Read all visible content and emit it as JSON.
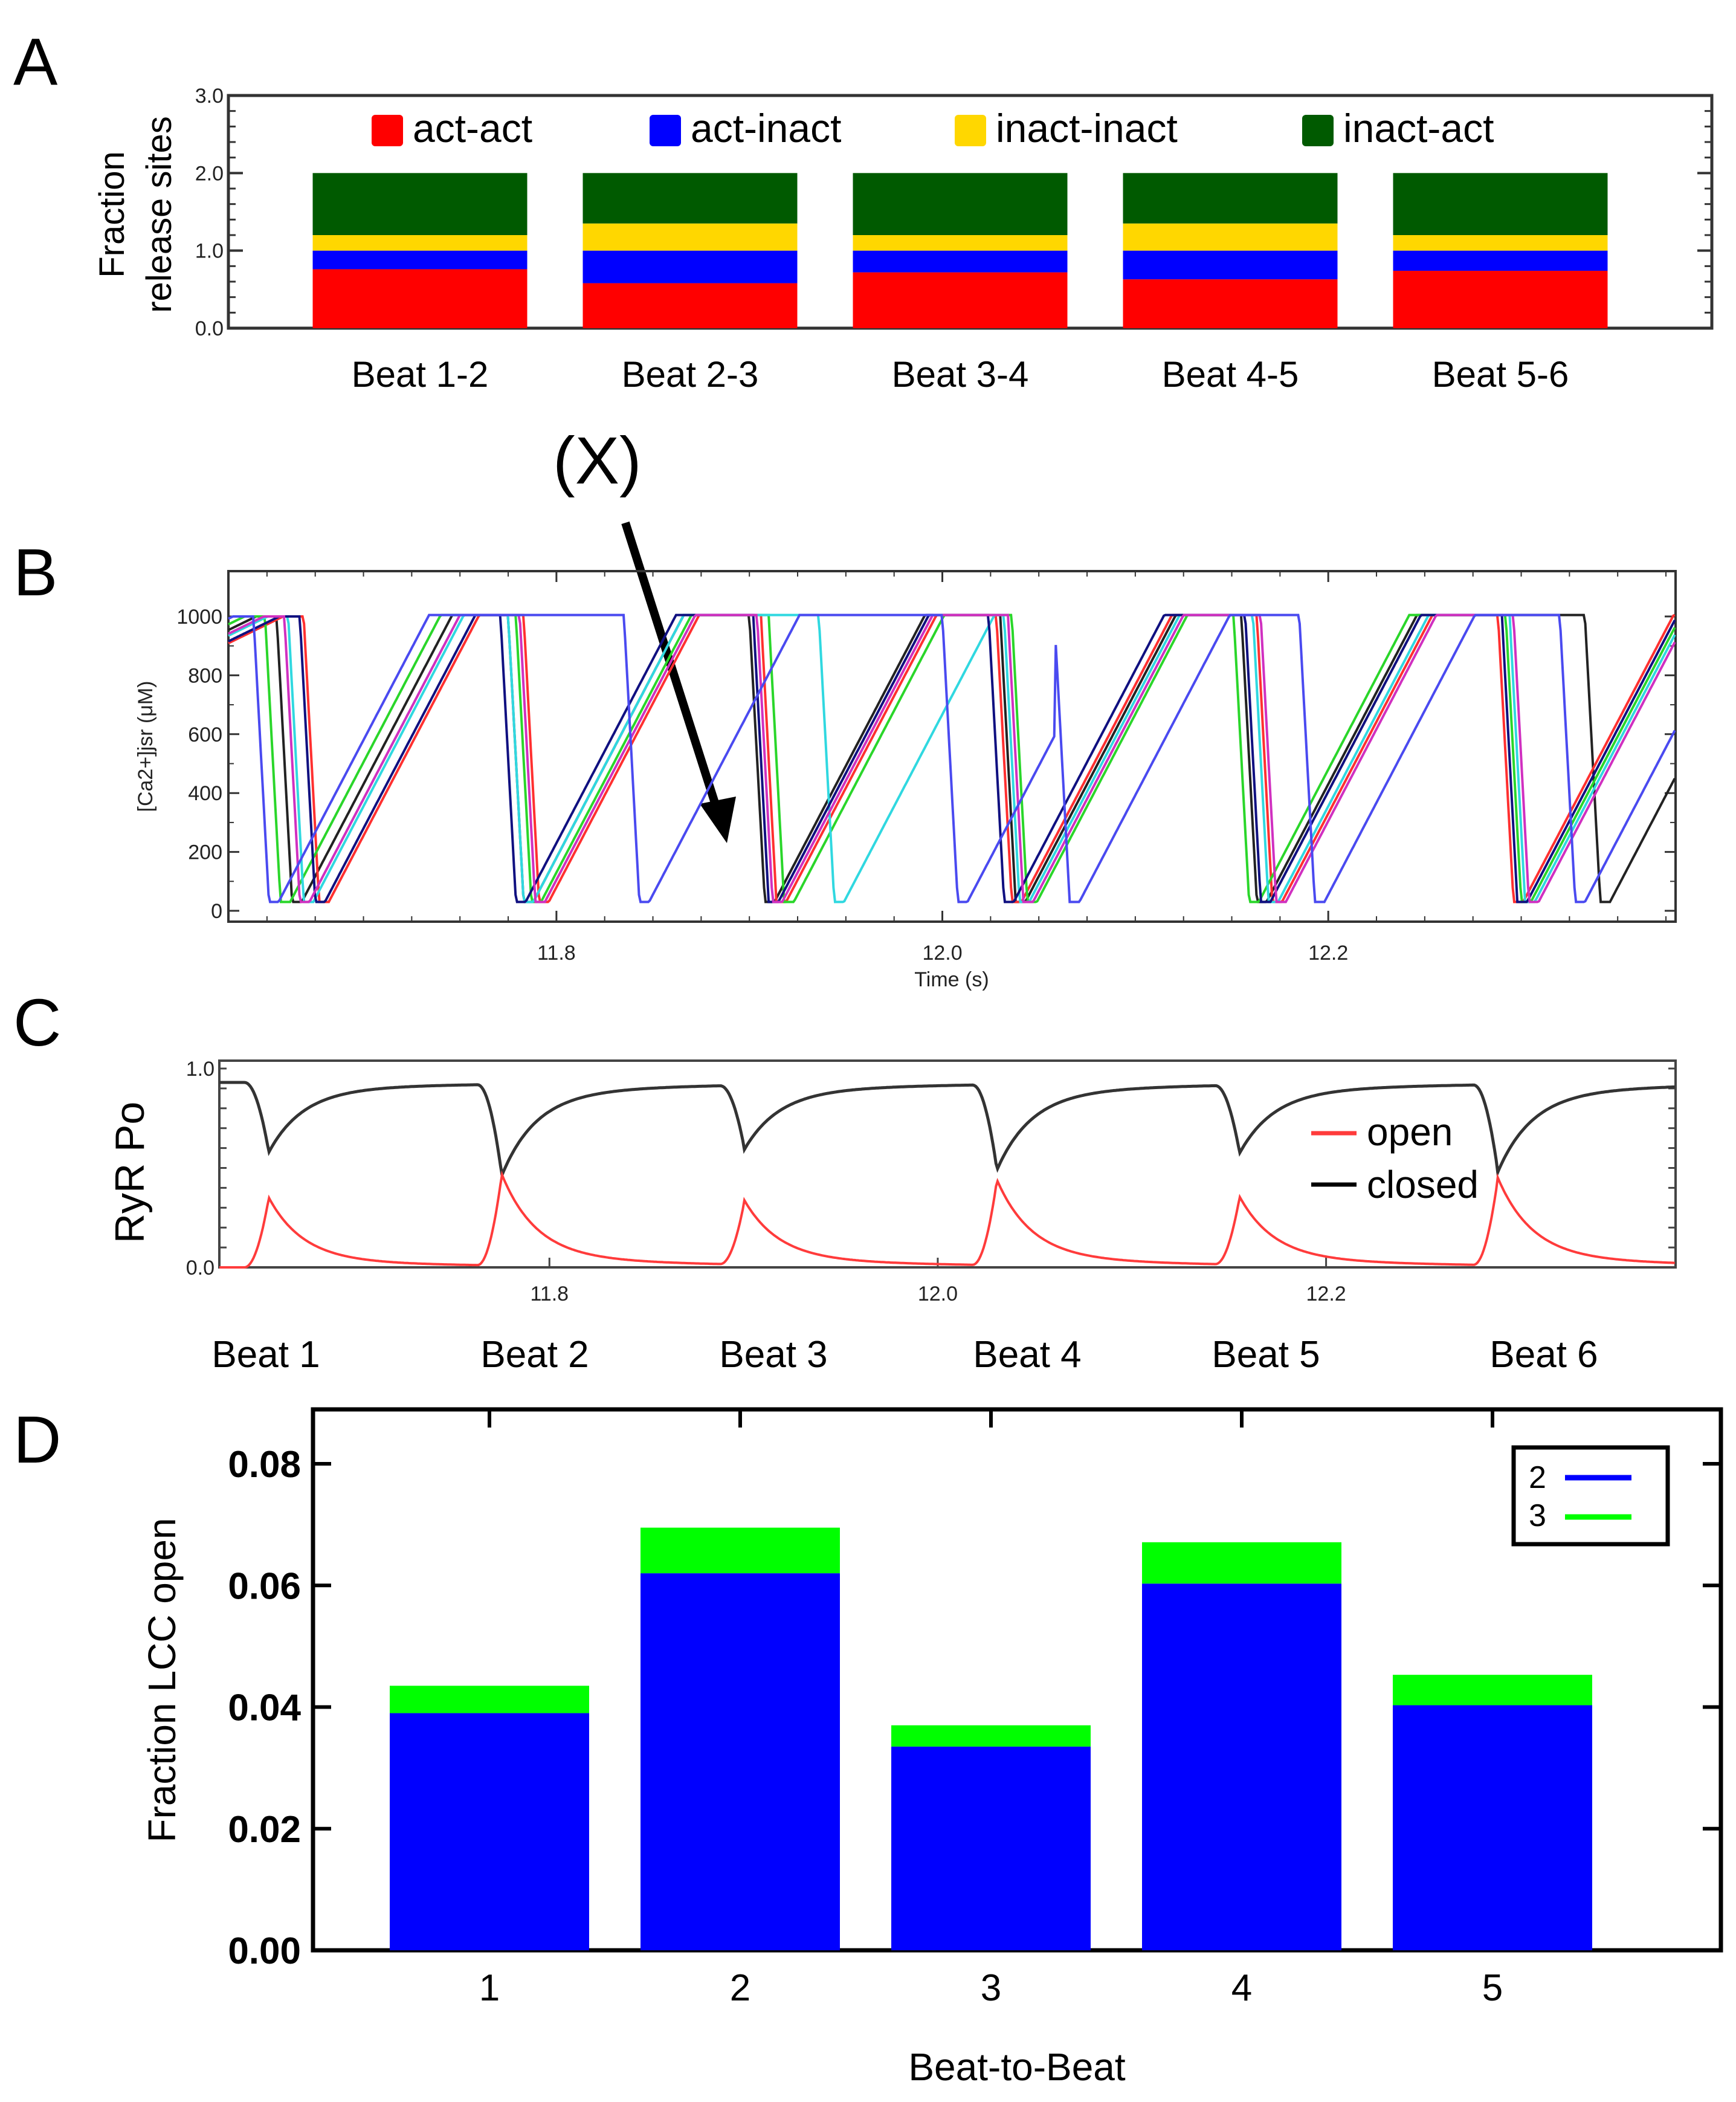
{
  "panel_letters": [
    "A",
    "B",
    "C",
    "D"
  ],
  "annotation": {
    "label": "(X)"
  },
  "colors": {
    "act_act": "#ff0000",
    "act_inact": "#0000ff",
    "inact_inact": "#ffd700",
    "inact_act": "#005a00",
    "open": "#ff3b3b",
    "closed": "#333333",
    "lcc2": "#0000ff",
    "lcc3": "#00ff00"
  },
  "chart_data": [
    {
      "id": "A",
      "type": "bar",
      "stacked": true,
      "ylabel_line1": "Fraction",
      "ylabel_line2": "release sites",
      "ylim": [
        0,
        3
      ],
      "yticks": [
        "0.0",
        "1.0",
        "2.0",
        "3.0"
      ],
      "categories": [
        "Beat 1-2",
        "Beat 2-3",
        "Beat 3-4",
        "Beat 4-5",
        "Beat 5-6"
      ],
      "legend": [
        "act-act",
        "act-inact",
        "inact-inact",
        "inact-act"
      ],
      "series": [
        {
          "name": "act-act",
          "values": [
            0.76,
            0.58,
            0.72,
            0.63,
            0.74
          ]
        },
        {
          "name": "act-inact",
          "values": [
            0.24,
            0.42,
            0.28,
            0.37,
            0.26
          ]
        },
        {
          "name": "inact-inact",
          "values": [
            0.2,
            0.35,
            0.2,
            0.35,
            0.2
          ]
        },
        {
          "name": "inact-act",
          "values": [
            0.8,
            0.65,
            0.8,
            0.65,
            0.8
          ]
        }
      ]
    },
    {
      "id": "B",
      "type": "line",
      "ylabel": "[Ca2+]jsr (μM)",
      "xlabel": "Time (s)",
      "ylim": [
        0,
        1100
      ],
      "yticks": [
        "0",
        "200",
        "400",
        "600",
        "800",
        "1000"
      ],
      "xlim": [
        11.63,
        12.38
      ],
      "xticks": [
        "11.8",
        "12.0",
        "12.2"
      ],
      "series": [
        {
          "name": "black",
          "color": "#222222",
          "offsets": [
            0.0,
            0.0,
            0.0,
            0.0,
            0.0,
            0.045
          ]
        },
        {
          "name": "red",
          "color": "#ff3030",
          "offsets": [
            0.014,
            0.008,
            0.006,
            -0.002,
            0.008,
            0.0
          ]
        },
        {
          "name": "green",
          "color": "#2ad62a",
          "offsets": [
            -0.006,
            0.004,
            0.01,
            0.006,
            -0.004,
            0.004
          ]
        },
        {
          "name": "cyan",
          "color": "#30d8e0",
          "offsets": [
            0.006,
            0.0,
            0.036,
            0.002,
            0.006,
            0.006
          ]
        },
        {
          "name": "navy",
          "color": "#101080",
          "offsets": [
            0.012,
            -0.004,
            0.002,
            -0.006,
            0.002,
            0.002
          ]
        },
        {
          "name": "magenta",
          "color": "#d030c0",
          "offsets": [
            0.004,
            0.006,
            0.004,
            0.004,
            0.01,
            0.008
          ]
        },
        {
          "name": "blue",
          "color": "#4a4af0",
          "offsets": [
            -0.012,
            0.06,
            0.1,
            0.028,
            0.03,
            0.032
          ]
        }
      ]
    },
    {
      "id": "C",
      "type": "line",
      "ylabel": "RyR Po",
      "ylim": [
        0,
        1
      ],
      "yticks": [
        "0.0",
        "1.0"
      ],
      "xlim": [
        11.63,
        12.38
      ],
      "xticks": [
        "11.8",
        "12.0",
        "12.2"
      ],
      "beat_labels": [
        "Beat 1",
        "Beat 2",
        "Beat 3",
        "Beat 4",
        "Beat 5",
        "Beat 6"
      ],
      "beat_times": [
        11.655,
        11.775,
        11.9,
        12.03,
        12.155,
        12.288
      ],
      "beat_peaks_open": [
        0.36,
        0.47,
        0.33,
        0.44,
        0.35,
        0.45
      ],
      "legend": [
        "open",
        "closed"
      ],
      "closed_baseline": 0.93
    },
    {
      "id": "D",
      "type": "bar",
      "stacked": true,
      "ylabel": "Fraction LCC open",
      "xlabel": "Beat-to-Beat",
      "ylim": [
        0,
        0.09
      ],
      "yticks": [
        "0.00",
        "0.02",
        "0.04",
        "0.06",
        "0.08"
      ],
      "categories": [
        "1",
        "2",
        "3",
        "4",
        "5"
      ],
      "legend": [
        "2",
        "3"
      ],
      "series": [
        {
          "name": "2",
          "values": [
            0.039,
            0.062,
            0.0335,
            0.0603,
            0.0403
          ]
        },
        {
          "name": "3",
          "values": [
            0.0045,
            0.0075,
            0.0035,
            0.0068,
            0.005
          ]
        }
      ]
    }
  ]
}
